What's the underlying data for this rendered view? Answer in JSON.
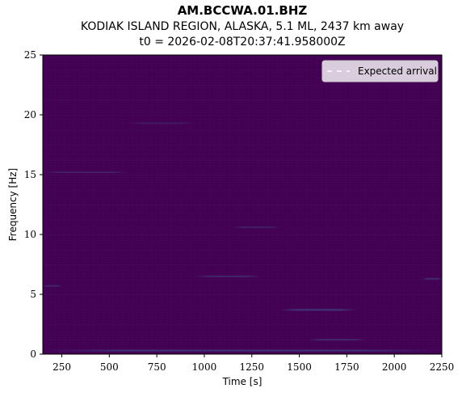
{
  "header": {
    "station": "AM.BCCWA.01.BHZ",
    "event": "KODIAK ISLAND REGION, ALASKA, 5.1 ML, 2437 km away",
    "t0": "t0 = 2026-02-08T20:37:41.958000Z"
  },
  "chart_data": {
    "type": "heatmap",
    "title": "AM.BCCWA.01.BHZ",
    "xlabel": "Time [s]",
    "ylabel": "Frequency [Hz]",
    "xlim": [
      150,
      2250
    ],
    "ylim": [
      0,
      25
    ],
    "x_ticks": [
      250,
      500,
      750,
      1000,
      1250,
      1500,
      1750,
      2000,
      2250
    ],
    "y_ticks": [
      0,
      5,
      10,
      15,
      20,
      25
    ],
    "colormap": "viridis",
    "background_color": "#440154",
    "grid": false,
    "legend": {
      "placement": "top-right",
      "entries": [
        {
          "label": "Expected arrival",
          "style": "dashed",
          "color": "#ffffff"
        }
      ]
    },
    "faint_bands": [
      {
        "y": 0.3,
        "x_start": 150,
        "x_end": 2250,
        "intensity": 0.25
      },
      {
        "y": 1.2,
        "x_start": 1550,
        "x_end": 1850,
        "intensity": 0.2
      },
      {
        "y": 3.7,
        "x_start": 1400,
        "x_end": 1800,
        "intensity": 0.25
      },
      {
        "y": 6.3,
        "x_start": 2150,
        "x_end": 2250,
        "intensity": 0.2
      },
      {
        "y": 6.5,
        "x_start": 950,
        "x_end": 1300,
        "intensity": 0.18
      },
      {
        "y": 5.7,
        "x_start": 150,
        "x_end": 250,
        "intensity": 0.18
      },
      {
        "y": 10.6,
        "x_start": 1150,
        "x_end": 1400,
        "intensity": 0.14
      },
      {
        "y": 15.2,
        "x_start": 150,
        "x_end": 600,
        "intensity": 0.15
      },
      {
        "y": 19.3,
        "x_start": 600,
        "x_end": 950,
        "intensity": 0.12
      }
    ]
  }
}
